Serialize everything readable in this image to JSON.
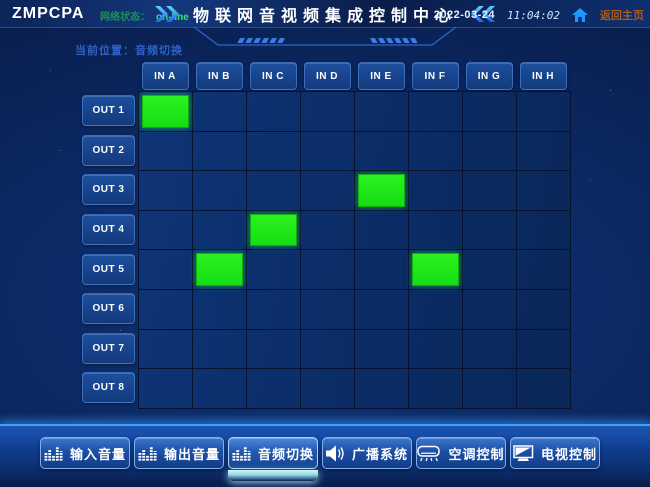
{
  "header": {
    "logo": "ZMPCPA",
    "network_label": "网络状态：",
    "network_status": "on-line",
    "title": "物联网音视频集成控制中心",
    "date": "2022-03-24",
    "time": "11:04:02",
    "home_label": "返回主页"
  },
  "breadcrumb": {
    "label": "当前位置：",
    "value": "音频切换"
  },
  "matrix": {
    "columns": [
      "IN A",
      "IN B",
      "IN C",
      "IN D",
      "IN E",
      "IN F",
      "IN G",
      "IN H"
    ],
    "rows": [
      "OUT 1",
      "OUT 2",
      "OUT 3",
      "OUT 4",
      "OUT 5",
      "OUT 6",
      "OUT 7",
      "OUT 8"
    ],
    "active_cells": [
      {
        "row": 0,
        "col": 0
      },
      {
        "row": 2,
        "col": 4
      },
      {
        "row": 3,
        "col": 2
      },
      {
        "row": 4,
        "col": 1
      },
      {
        "row": 4,
        "col": 5
      }
    ]
  },
  "toolbar": {
    "buttons": [
      {
        "name": "input-volume",
        "label": "输入音量",
        "icon": "equalizer-icon",
        "active": false
      },
      {
        "name": "output-volume",
        "label": "输出音量",
        "icon": "equalizer-icon",
        "active": false
      },
      {
        "name": "audio-switch",
        "label": "音频切换",
        "icon": "equalizer-icon",
        "active": true
      },
      {
        "name": "broadcast",
        "label": "广播系统",
        "icon": "speaker-icon",
        "active": false
      },
      {
        "name": "ac-control",
        "label": "空调控制",
        "icon": "air-conditioner-icon",
        "active": false
      },
      {
        "name": "tv-control",
        "label": "电视控制",
        "icon": "tv-icon",
        "active": false
      }
    ]
  },
  "colors": {
    "active_route_green": "#1de01d",
    "status_green": "#31e763",
    "home_link_orange": "#ad5a1a",
    "accent_blue": "#3fa0ff",
    "active_tab_cyan": "#bfeef5"
  }
}
